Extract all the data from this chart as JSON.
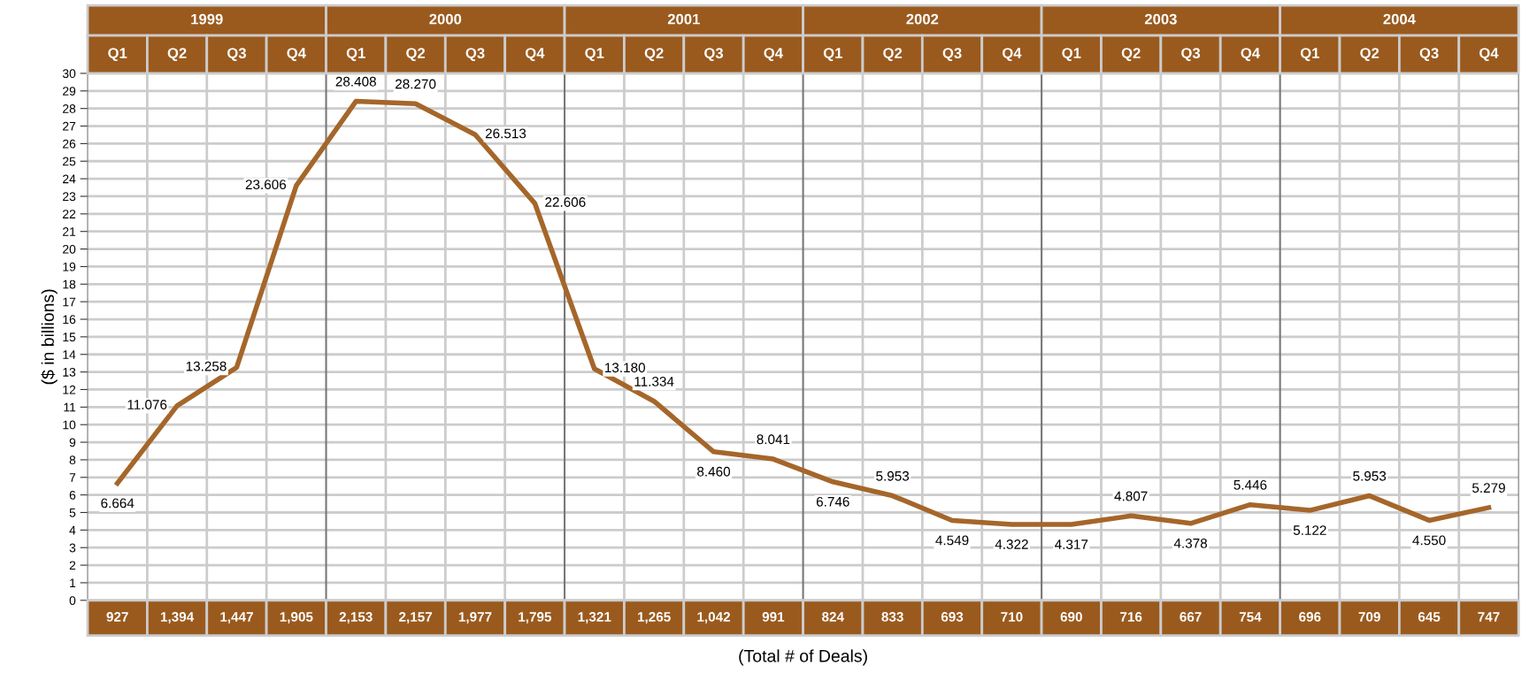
{
  "chart_data": {
    "type": "line",
    "ylabel": "($ in billions)",
    "xlabel": "(Total # of Deals)",
    "categories": [
      "Q1",
      "Q2",
      "Q3",
      "Q4",
      "Q1",
      "Q2",
      "Q3",
      "Q4",
      "Q1",
      "Q2",
      "Q3",
      "Q4",
      "Q1",
      "Q2",
      "Q3",
      "Q4",
      "Q1",
      "Q2",
      "Q3",
      "Q4",
      "Q1",
      "Q2",
      "Q3",
      "Q4"
    ],
    "series": [
      {
        "color": "#a5662a",
        "values": [
          6.664,
          11.076,
          13.258,
          23.606,
          28.408,
          28.27,
          26.513,
          22.606,
          13.18,
          11.334,
          8.46,
          8.041,
          6.746,
          5.953,
          4.549,
          4.322,
          4.317,
          4.807,
          4.378,
          5.446,
          5.122,
          5.953,
          4.55,
          5.279
        ],
        "value_labels": [
          "6.664",
          "11.076",
          "13.258",
          "23.606",
          "28.408",
          "28.270",
          "26.513",
          "22.606",
          "13.180",
          "11.334",
          "8.460",
          "8.041",
          "6.746",
          "5.953",
          "4.549",
          "4.322",
          "4.317",
          "4.807",
          "4.378",
          "5.446",
          "5.122",
          "5.953",
          "4.550",
          "5.279"
        ]
      }
    ],
    "ylim": [
      0,
      30
    ],
    "yticks": [
      0,
      1,
      2,
      3,
      4,
      5,
      6,
      7,
      8,
      9,
      10,
      11,
      12,
      13,
      14,
      15,
      16,
      17,
      18,
      19,
      20,
      21,
      22,
      23,
      24,
      25,
      26,
      27,
      28,
      29,
      30
    ],
    "grid": true,
    "marker": "none",
    "line_style": "solid",
    "annotations": [
      "1999",
      "2000",
      "2001",
      "2002",
      "2003",
      "2004",
      "927",
      "1,394",
      "1,447",
      "1,905",
      "2,153",
      "2,157",
      "1,977",
      "1,795",
      "1,321",
      "1,265",
      "1,042",
      "991",
      "824",
      "833",
      "693",
      "710",
      "690",
      "716",
      "667",
      "754",
      "696",
      "709",
      "645",
      "747"
    ]
  }
}
